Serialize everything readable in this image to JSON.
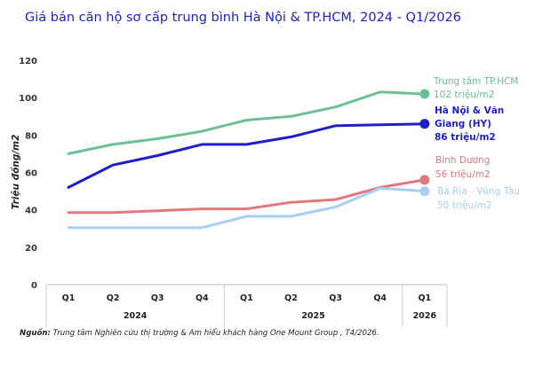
{
  "chart_data": {
    "type": "line",
    "title": "Giá bán căn hộ sơ cấp trung bình Hà Nội & TP.HCM, 2024 - Q1/2026",
    "ylabel": "Triệu đồng/m2",
    "xlabel": "",
    "ylim": [
      0,
      120
    ],
    "yticks": [
      "0",
      "20",
      "40",
      "60",
      "80",
      "100",
      "120"
    ],
    "categories": [
      "Q1",
      "Q2",
      "Q3",
      "Q4",
      "Q1",
      "Q2",
      "Q3",
      "Q4",
      "Q1"
    ],
    "years": [
      {
        "label": "2024",
        "span": [
          0,
          3
        ]
      },
      {
        "label": "2025",
        "span": [
          4,
          7
        ]
      },
      {
        "label": "2026",
        "span": [
          8,
          8
        ]
      }
    ],
    "grid": false,
    "legend": "right",
    "series": [
      {
        "name": "Trung tâm TP.HCM",
        "value_label": "102 triệu/m2",
        "color": "#6dbf95",
        "values": [
          70,
          75,
          78,
          82,
          88,
          90,
          95,
          103,
          102
        ]
      },
      {
        "name": "Hà Nội & Văn Giang (HY)",
        "value_label": "86 triệu/m2",
        "color": "#1f1fc8",
        "values": [
          52,
          64,
          69,
          75,
          75,
          79,
          85,
          85.5,
          86
        ]
      },
      {
        "name": "Bình Dương",
        "value_label": "56 triệu/m2",
        "color": "#e07a7e",
        "values": [
          38.5,
          38.5,
          39.5,
          40.5,
          40.5,
          44,
          45.5,
          52,
          56
        ]
      },
      {
        "name": "Bà Rịa - Vũng Tàu",
        "value_label": "50 triệu/m2",
        "color": "#a9cdf3",
        "values": [
          30.5,
          30.5,
          30.5,
          30.5,
          36.5,
          36.5,
          41.5,
          51.5,
          50
        ]
      }
    ]
  },
  "source": {
    "label": "Nguồn:",
    "text": " Trung tâm Nghiên cứu thị trường & Am hiểu khách hàng One Mount Group , T4/2026."
  }
}
